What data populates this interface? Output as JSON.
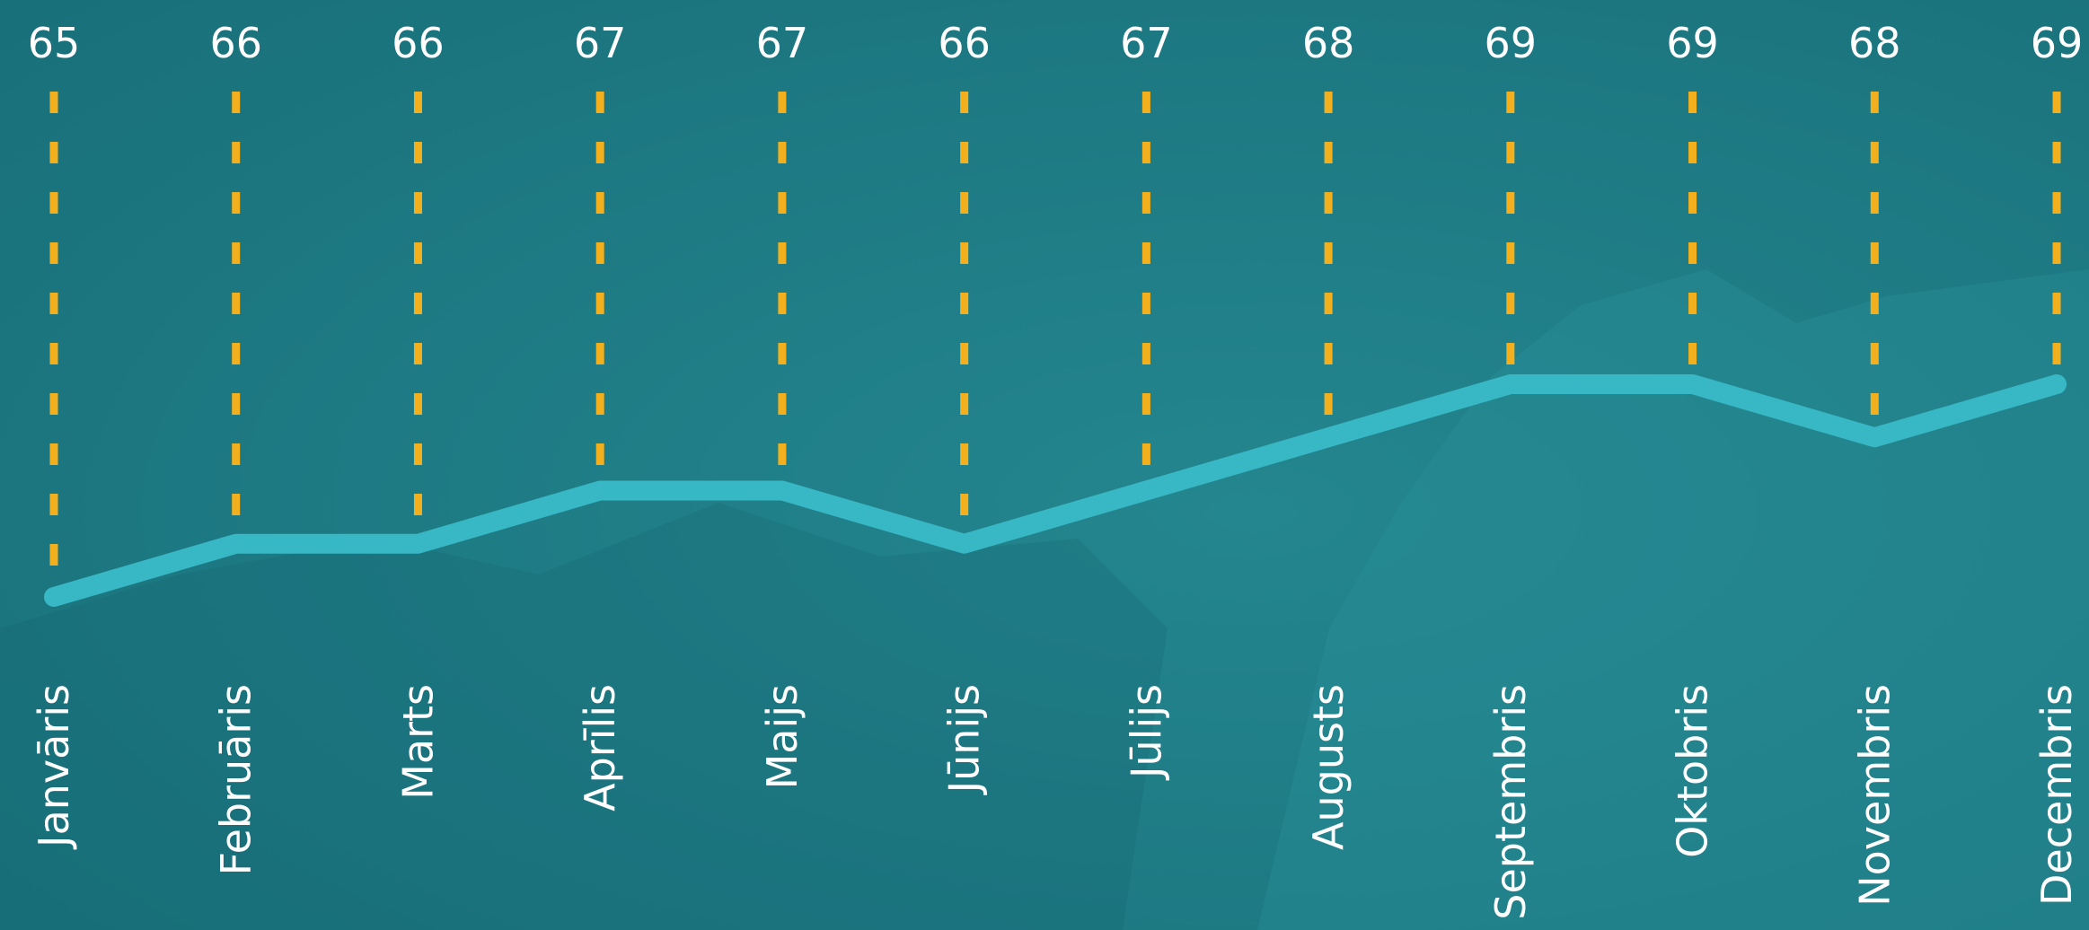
{
  "chart_data": {
    "type": "line",
    "categories": [
      "Janvāris",
      "Februāris",
      "Marts",
      "Aprīlis",
      "Maijs",
      "Jūnijs",
      "Jūlijs",
      "Augusts",
      "Septembris",
      "Oktobris",
      "Novembris",
      "Decembris"
    ],
    "values": [
      65,
      66,
      66,
      67,
      67,
      66,
      67,
      68,
      69,
      69,
      68,
      69
    ],
    "title": "",
    "xlabel": "",
    "ylabel": "",
    "grid": false,
    "legend": "none",
    "colors": {
      "background": "#1d7a84",
      "line": "#38b8c4",
      "drop_lines": "#f2b01e",
      "text": "#ffffff"
    }
  }
}
